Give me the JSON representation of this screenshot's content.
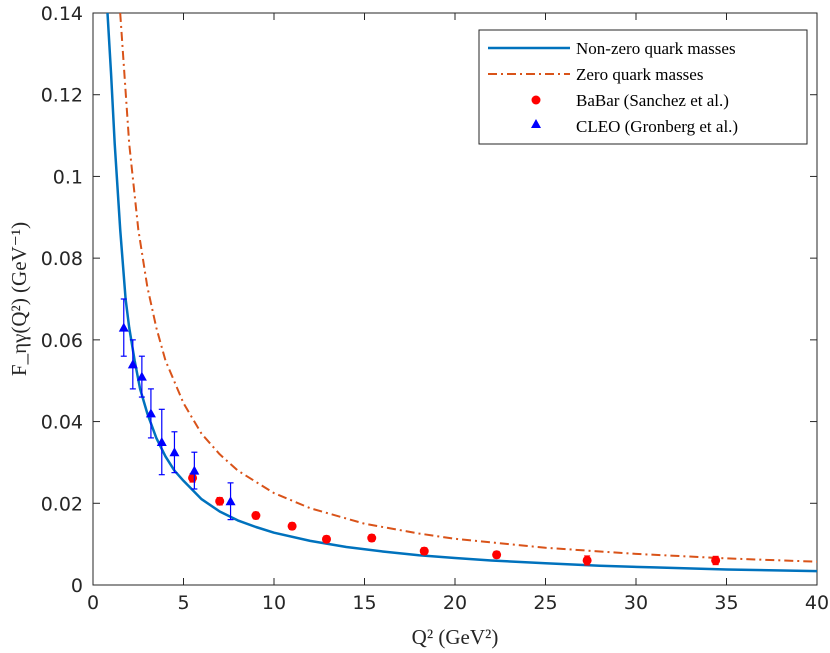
{
  "chart_data": {
    "type": "line",
    "xlabel": "Q² (GeV²)",
    "ylabel": "F_ηγ(Q²) (GeV⁻¹)",
    "xlim": [
      0,
      40
    ],
    "ylim": [
      0,
      0.14
    ],
    "x_ticks": [
      "0",
      "5",
      "10",
      "15",
      "20",
      "25",
      "30",
      "35",
      "40"
    ],
    "y_ticks": [
      "0",
      "0.02",
      "0.04",
      "0.06",
      "0.08",
      "0.1",
      "0.12",
      "0.14"
    ],
    "legend_position": "top-right",
    "series": [
      {
        "name": "Non-zero quark masses",
        "style": "solid",
        "color": "#0072BD",
        "x": [
          0.8,
          1.0,
          1.2,
          1.5,
          1.8,
          2.0,
          2.3,
          2.6,
          3.0,
          3.5,
          4.0,
          4.5,
          5.0,
          6.0,
          7.0,
          8.0,
          9.0,
          10,
          12,
          14,
          16,
          18,
          20,
          22,
          25,
          28,
          31,
          35,
          40
        ],
        "y": [
          0.14,
          0.125,
          0.108,
          0.087,
          0.07,
          0.063,
          0.055,
          0.048,
          0.042,
          0.036,
          0.0315,
          0.028,
          0.0255,
          0.021,
          0.018,
          0.0158,
          0.0142,
          0.0128,
          0.0108,
          0.0093,
          0.0082,
          0.0073,
          0.0066,
          0.006,
          0.0053,
          0.0047,
          0.0043,
          0.0038,
          0.0034
        ]
      },
      {
        "name": "Zero quark masses",
        "style": "dash-dot",
        "color": "#D95319",
        "x": [
          1.5,
          2.0,
          2.5,
          3.0,
          3.5,
          4.0,
          5.0,
          6.0,
          7.0,
          8.0,
          10,
          12,
          15,
          18,
          20,
          25,
          30,
          35,
          40
        ],
        "y": [
          0.14,
          0.108,
          0.087,
          0.073,
          0.063,
          0.055,
          0.0445,
          0.037,
          0.032,
          0.028,
          0.0225,
          0.0188,
          0.015,
          0.0126,
          0.0113,
          0.0091,
          0.0076,
          0.0065,
          0.0057
        ]
      },
      {
        "name": "BaBar (Sanchez et al.)",
        "style": "markers",
        "marker": "circle",
        "color": "#FF0000",
        "x": [
          5.5,
          7.0,
          9.0,
          11.0,
          12.9,
          15.4,
          18.3,
          22.3,
          27.3,
          34.4
        ],
        "y": [
          0.0262,
          0.0205,
          0.017,
          0.0144,
          0.0112,
          0.0115,
          0.0083,
          0.0074,
          0.006,
          0.006
        ],
        "err": [
          0.001,
          0.0009,
          0.0008,
          0.0008,
          0.0008,
          0.0008,
          0.0008,
          0.0008,
          0.0011,
          0.001
        ]
      },
      {
        "name": "CLEO (Gronberg et al.)",
        "style": "markers",
        "marker": "triangle",
        "color": "#0000FF",
        "x": [
          1.7,
          2.2,
          2.7,
          3.2,
          3.8,
          4.5,
          5.6,
          7.6
        ],
        "y": [
          0.063,
          0.054,
          0.051,
          0.042,
          0.035,
          0.0325,
          0.028,
          0.0205
        ],
        "err": [
          0.007,
          0.006,
          0.005,
          0.006,
          0.008,
          0.005,
          0.0045,
          0.0045
        ]
      }
    ]
  }
}
